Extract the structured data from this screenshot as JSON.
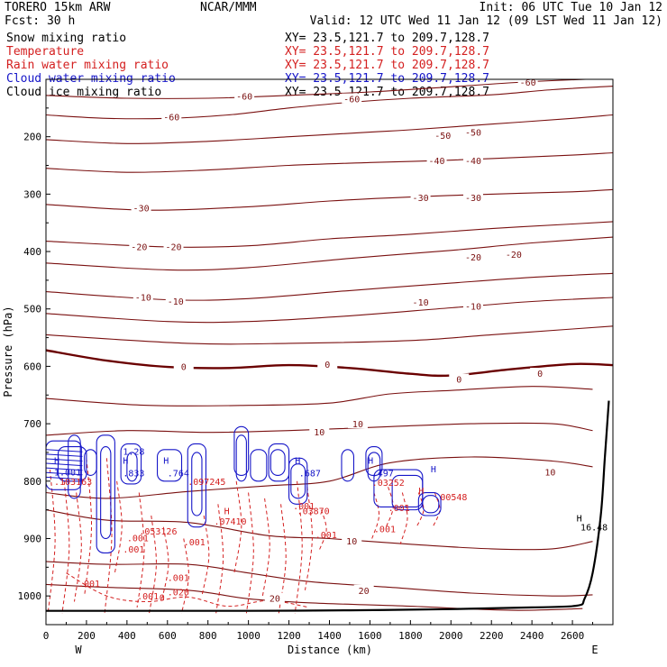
{
  "header": {
    "model": "TORERO 15km ARW",
    "org": "NCAR/MMM",
    "init": "Init: 06 UTC Tue 10 Jan 12",
    "fcst": "Fcst: 30 h",
    "valid": "Valid: 12 UTC Wed 11 Jan 12 (09 LST Wed 11 Jan 12)"
  },
  "legend": [
    {
      "label": "Snow mixing ratio",
      "xy": "XY= 23.5,121.7 to 209.7,128.7",
      "color": "#000000"
    },
    {
      "label": "Temperature",
      "xy": "XY= 23.5,121.7 to 209.7,128.7",
      "color": "#d42020"
    },
    {
      "label": "Rain water mixing ratio",
      "xy": "XY= 23.5,121.7 to 209.7,128.7",
      "color": "#d42020"
    },
    {
      "label": "Cloud water mixing ratio",
      "xy": "XY= 23.5,121.7 to 209.7,128.7",
      "color": "#1515c8"
    },
    {
      "label": "Cloud ice mixing ratio",
      "xy": "XY= 23.5,121.7 to 209.7,128.7",
      "color": "#000000"
    }
  ],
  "chart_data": {
    "type": "contour",
    "xlabel": "Distance (km)",
    "ylabel": "Pressure (hPa)",
    "xlim": [
      0,
      2800
    ],
    "ylim": [
      1050,
      100
    ],
    "x_ticks": [
      0,
      200,
      400,
      600,
      800,
      1000,
      1200,
      1400,
      1600,
      1800,
      2000,
      2200,
      2400,
      2600
    ],
    "y_ticks": [
      200,
      300,
      400,
      500,
      600,
      700,
      800,
      900,
      1000
    ],
    "x_end_labels": {
      "left": "W",
      "right": "E"
    },
    "colors": {
      "temperature": "#7a1010",
      "zero_isotherm": "#6a0000",
      "rain": "#d42020",
      "cloud_water": "#1515c8",
      "terrain": "#000000"
    },
    "temperature_contours": [
      {
        "level": -60,
        "points": [
          [
            0,
            128
          ],
          [
            400,
            133
          ],
          [
            800,
            133
          ],
          [
            1200,
            128
          ],
          [
            1600,
            122
          ],
          [
            2000,
            113
          ],
          [
            2400,
            104
          ],
          [
            2800,
            98
          ]
        ]
      },
      {
        "level": -60,
        "points": [
          [
            0,
            162
          ],
          [
            300,
            168
          ],
          [
            600,
            168
          ],
          [
            900,
            162
          ],
          [
            1200,
            150
          ],
          [
            1500,
            140
          ],
          [
            1800,
            133
          ],
          [
            2200,
            127
          ],
          [
            2500,
            118
          ],
          [
            2800,
            112
          ]
        ]
      },
      {
        "level": -50,
        "points": [
          [
            0,
            205
          ],
          [
            400,
            212
          ],
          [
            800,
            208
          ],
          [
            1200,
            200
          ],
          [
            1600,
            192
          ],
          [
            1800,
            188
          ],
          [
            2200,
            178
          ],
          [
            2600,
            168
          ],
          [
            2800,
            162
          ]
        ]
      },
      {
        "level": -40,
        "points": [
          [
            0,
            255
          ],
          [
            400,
            262
          ],
          [
            800,
            258
          ],
          [
            1200,
            250
          ],
          [
            1600,
            245
          ],
          [
            1900,
            242
          ],
          [
            2200,
            238
          ],
          [
            2600,
            232
          ],
          [
            2800,
            228
          ]
        ]
      },
      {
        "level": -30,
        "points": [
          [
            0,
            318
          ],
          [
            500,
            328
          ],
          [
            1000,
            322
          ],
          [
            1400,
            312
          ],
          [
            1800,
            305
          ],
          [
            2200,
            300
          ],
          [
            2600,
            296
          ],
          [
            2800,
            292
          ]
        ]
      },
      {
        "level": -20,
        "points": [
          [
            0,
            382
          ],
          [
            600,
            392
          ],
          [
            1000,
            390
          ],
          [
            1400,
            378
          ],
          [
            1800,
            370
          ],
          [
            2200,
            360
          ],
          [
            2600,
            352
          ],
          [
            2800,
            348
          ]
        ]
      },
      {
        "level": -20,
        "points": [
          [
            0,
            420
          ],
          [
            600,
            432
          ],
          [
            1000,
            428
          ],
          [
            1500,
            412
          ],
          [
            2000,
            398
          ],
          [
            2400,
            385
          ],
          [
            2800,
            375
          ]
        ]
      },
      {
        "level": -10,
        "points": [
          [
            0,
            470
          ],
          [
            600,
            484
          ],
          [
            1000,
            482
          ],
          [
            1500,
            468
          ],
          [
            2000,
            455
          ],
          [
            2400,
            445
          ],
          [
            2800,
            438
          ]
        ]
      },
      {
        "level": -10,
        "points": [
          [
            0,
            508
          ],
          [
            600,
            522
          ],
          [
            1000,
            522
          ],
          [
            1500,
            512
          ],
          [
            2000,
            498
          ],
          [
            2400,
            487
          ],
          [
            2800,
            480
          ]
        ]
      },
      {
        "level": -10,
        "points": [
          [
            0,
            545
          ],
          [
            700,
            560
          ],
          [
            1200,
            560
          ],
          [
            1800,
            555
          ],
          [
            2200,
            545
          ],
          [
            2600,
            535
          ],
          [
            2800,
            530
          ]
        ]
      },
      {
        "level": 0,
        "points": [
          [
            0,
            572
          ],
          [
            300,
            590
          ],
          [
            600,
            601
          ],
          [
            900,
            603
          ],
          [
            1200,
            598
          ],
          [
            1500,
            603
          ],
          [
            1800,
            613
          ],
          [
            2000,
            616
          ],
          [
            2300,
            605
          ],
          [
            2600,
            596
          ],
          [
            2800,
            598
          ]
        ]
      },
      {
        "level": 10,
        "points": [
          [
            0,
            656
          ],
          [
            500,
            668
          ],
          [
            1000,
            668
          ],
          [
            1400,
            664
          ],
          [
            1700,
            648
          ],
          [
            2000,
            642
          ],
          [
            2400,
            635
          ],
          [
            2700,
            640
          ]
        ]
      },
      {
        "level": 10,
        "points": [
          [
            0,
            720
          ],
          [
            400,
            712
          ],
          [
            800,
            715
          ],
          [
            1200,
            712
          ],
          [
            1700,
            705
          ],
          [
            2100,
            700
          ],
          [
            2500,
            700
          ],
          [
            2700,
            712
          ]
        ]
      },
      {
        "level": 10,
        "points": [
          [
            0,
            820
          ],
          [
            300,
            830
          ],
          [
            700,
            818
          ],
          [
            1100,
            808
          ],
          [
            1400,
            800
          ],
          [
            1700,
            768
          ],
          [
            2100,
            758
          ],
          [
            2500,
            765
          ],
          [
            2700,
            775
          ]
        ]
      },
      {
        "level": 10,
        "points": [
          [
            0,
            850
          ],
          [
            300,
            868
          ],
          [
            700,
            872
          ],
          [
            1100,
            895
          ],
          [
            1400,
            900
          ],
          [
            1800,
            910
          ],
          [
            2200,
            918
          ],
          [
            2500,
            918
          ],
          [
            2700,
            905
          ]
        ]
      },
      {
        "level": 20,
        "points": [
          [
            0,
            940
          ],
          [
            300,
            945
          ],
          [
            700,
            945
          ],
          [
            1000,
            960
          ],
          [
            1300,
            975
          ],
          [
            1700,
            985
          ],
          [
            2100,
            995
          ],
          [
            2500,
            1000
          ],
          [
            2700,
            998
          ]
        ]
      },
      {
        "level": 20,
        "points": [
          [
            0,
            980
          ],
          [
            300,
            985
          ],
          [
            700,
            990
          ],
          [
            1000,
            1005
          ],
          [
            1300,
            1012
          ],
          [
            1800,
            1018
          ],
          [
            2300,
            1025
          ],
          [
            2650,
            1022
          ]
        ]
      }
    ],
    "temperature_labels": [
      {
        "level": -60,
        "x": 980,
        "p": 129
      },
      {
        "level": -60,
        "x": 1510,
        "p": 134
      },
      {
        "level": -60,
        "x": 2380,
        "p": 105
      },
      {
        "level": -60,
        "x": 620,
        "p": 165
      },
      {
        "level": -50,
        "x": 1960,
        "p": 197
      },
      {
        "level": -50,
        "x": 2110,
        "p": 192
      },
      {
        "level": -40,
        "x": 1930,
        "p": 241
      },
      {
        "level": -40,
        "x": 2110,
        "p": 241
      },
      {
        "level": -30,
        "x": 470,
        "p": 324
      },
      {
        "level": -30,
        "x": 1850,
        "p": 306
      },
      {
        "level": -30,
        "x": 2110,
        "p": 306
      },
      {
        "level": -20,
        "x": 460,
        "p": 391
      },
      {
        "level": -20,
        "x": 630,
        "p": 391
      },
      {
        "level": -20,
        "x": 2110,
        "p": 409
      },
      {
        "level": -20,
        "x": 2310,
        "p": 405
      },
      {
        "level": -10,
        "x": 480,
        "p": 479
      },
      {
        "level": -10,
        "x": 640,
        "p": 486
      },
      {
        "level": -10,
        "x": 1850,
        "p": 488
      },
      {
        "level": -10,
        "x": 2110,
        "p": 495
      },
      {
        "level": 0,
        "x": 680,
        "p": 600
      },
      {
        "level": 0,
        "x": 1390,
        "p": 596
      },
      {
        "level": 0,
        "x": 2040,
        "p": 622
      },
      {
        "level": 0,
        "x": 2440,
        "p": 612
      },
      {
        "level": 10,
        "x": 1350,
        "p": 714
      },
      {
        "level": 10,
        "x": 1540,
        "p": 700
      },
      {
        "level": 10,
        "x": 2490,
        "p": 784
      },
      {
        "level": 10,
        "x": 1510,
        "p": 904
      },
      {
        "level": 20,
        "x": 1130,
        "p": 1004
      },
      {
        "level": 20,
        "x": 1570,
        "p": 990
      }
    ],
    "rain_labels": [
      {
        "text": ".103163",
        "x": 40,
        "p": 807
      },
      {
        "text": ".097245",
        "x": 700,
        "p": 807
      },
      {
        "text": ".03252",
        "x": 1610,
        "p": 808
      },
      {
        "text": ".053126",
        "x": 460,
        "p": 893
      },
      {
        "text": ".07410",
        "x": 830,
        "p": 876
      },
      {
        "text": ".03870",
        "x": 1240,
        "p": 858
      },
      {
        "text": ".001",
        "x": 1220,
        "p": 849
      },
      {
        "text": ".001",
        "x": 1690,
        "p": 852
      },
      {
        "text": ".001",
        "x": 1330,
        "p": 899
      },
      {
        "text": ".001",
        "x": 1620,
        "p": 889
      },
      {
        "text": ".001",
        "x": 400,
        "p": 905
      },
      {
        "text": ".001",
        "x": 680,
        "p": 912
      },
      {
        "text": ".001",
        "x": 380,
        "p": 924
      },
      {
        "text": ".001",
        "x": 160,
        "p": 984
      },
      {
        "text": ".001",
        "x": 600,
        "p": 974
      },
      {
        "text": ".001",
        "x": 450,
        "p": 1006
      },
      {
        "text": ".020",
        "x": 600,
        "p": 999
      },
      {
        "text": "0",
        "x": 560,
        "p": 1008
      },
      {
        "text": ".00548",
        "x": 1920,
        "p": 833
      }
    ],
    "cloud_labels": [
      {
        "text": "H",
        "x": 40,
        "p": 770
      },
      {
        "text": "1.001",
        "x": 40,
        "p": 790
      },
      {
        "text": "1.28",
        "x": 380,
        "p": 754
      },
      {
        "text": "H",
        "x": 380,
        "p": 770
      },
      {
        "text": ".833",
        "x": 380,
        "p": 792
      },
      {
        "text": "H",
        "x": 580,
        "p": 770
      },
      {
        "text": ".764",
        "x": 600,
        "p": 792
      },
      {
        "text": "H",
        "x": 1230,
        "p": 770
      },
      {
        "text": ".687",
        "x": 1250,
        "p": 792
      },
      {
        "text": "H",
        "x": 1590,
        "p": 770
      },
      {
        "text": ".497",
        "x": 1610,
        "p": 792
      },
      {
        "text": "H",
        "x": 1900,
        "p": 785
      },
      {
        "text": "H",
        "x": 1840,
        "p": 822
      },
      {
        "text": "H",
        "x": 2620,
        "p": 870
      },
      {
        "text": "16.48",
        "x": 2640,
        "p": 886
      },
      {
        "text": "H",
        "x": 880,
        "p": 858
      }
    ],
    "terrain": [
      [
        0,
        1026
      ],
      [
        500,
        1026
      ],
      [
        1000,
        1026
      ],
      [
        1500,
        1025
      ],
      [
        2000,
        1023
      ],
      [
        2400,
        1020
      ],
      [
        2620,
        1017
      ],
      [
        2660,
        1005
      ],
      [
        2700,
        960
      ],
      [
        2740,
        860
      ],
      [
        2760,
        760
      ],
      [
        2780,
        660
      ]
    ]
  }
}
